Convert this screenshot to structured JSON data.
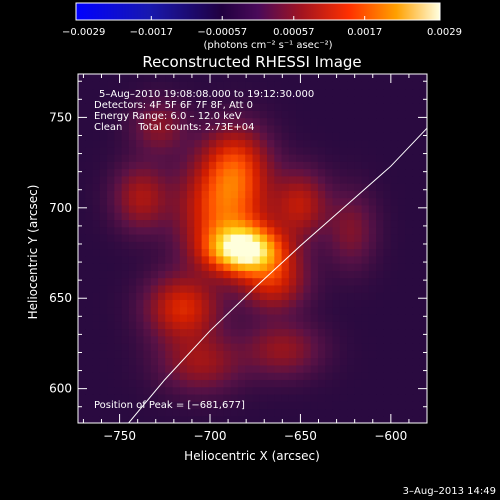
{
  "chart_data": {
    "type": "heatmap",
    "title": "Reconstructed RHESSI Image",
    "xlabel": "Heliocentric X (arcsec)",
    "ylabel": "Heliocentric Y (arcsec)",
    "xlim": [
      -773,
      -580
    ],
    "ylim": [
      581,
      774
    ],
    "xticks": [
      -750,
      -700,
      -650,
      -600
    ],
    "yticks": [
      600,
      650,
      700,
      750
    ],
    "xtick_labels": [
      "−750",
      "−700",
      "−650",
      "−600"
    ],
    "ytick_labels": [
      "600",
      "650",
      "700",
      "750"
    ],
    "colorbar": {
      "min": -0.0029,
      "max": 0.0029,
      "tick_values": [
        -0.0029,
        -0.0017,
        -0.00057,
        0.00057,
        0.0017,
        0.0029
      ],
      "tick_labels": [
        "−0.0029",
        "−0.0017",
        "−0.00057",
        "0.00057",
        "0.0017",
        "0.0029"
      ],
      "units": "(photons cm⁻² s⁻¹ asec⁻²)"
    },
    "annotations": [
      "5–Aug–2010 19:08:08.000 to 19:12:30.000",
      "Detectors: 4F 5F 6F 7F 8F, Att 0",
      "Energy Range: 6.0 – 12.0 keV",
      "Clean     Total counts: 2.73E+04"
    ],
    "peak_label": "Position of Peak = [−681,677]",
    "peak": [
      -681,
      677
    ],
    "limb_curve": [
      [
        -745,
        581
      ],
      [
        -725,
        605
      ],
      [
        -700,
        632
      ],
      [
        -675,
        656
      ],
      [
        -650,
        679
      ],
      [
        -625,
        701
      ],
      [
        -600,
        723
      ],
      [
        -580,
        744
      ]
    ],
    "sources": [
      {
        "x": -681,
        "y": 677,
        "sx": 14,
        "sy": 9,
        "amp": 1.0
      },
      {
        "x": -692,
        "y": 700,
        "sx": 16,
        "sy": 18,
        "amp": 0.55
      },
      {
        "x": -686,
        "y": 725,
        "sx": 12,
        "sy": 14,
        "amp": 0.38
      },
      {
        "x": -715,
        "y": 645,
        "sx": 13,
        "sy": 12,
        "amp": 0.42
      },
      {
        "x": -665,
        "y": 660,
        "sx": 12,
        "sy": 11,
        "amp": 0.38
      },
      {
        "x": -650,
        "y": 702,
        "sx": 10,
        "sy": 12,
        "amp": 0.32
      },
      {
        "x": -738,
        "y": 706,
        "sx": 10,
        "sy": 12,
        "amp": 0.28
      },
      {
        "x": -705,
        "y": 615,
        "sx": 15,
        "sy": 11,
        "amp": 0.25
      },
      {
        "x": -660,
        "y": 622,
        "sx": 14,
        "sy": 10,
        "amp": 0.23
      },
      {
        "x": -728,
        "y": 745,
        "sx": 10,
        "sy": 10,
        "amp": 0.2
      },
      {
        "x": -622,
        "y": 688,
        "sx": 9,
        "sy": 14,
        "amp": 0.18
      }
    ],
    "grid": false
  },
  "footer": {
    "date": "3–Aug–2013 14:49"
  }
}
